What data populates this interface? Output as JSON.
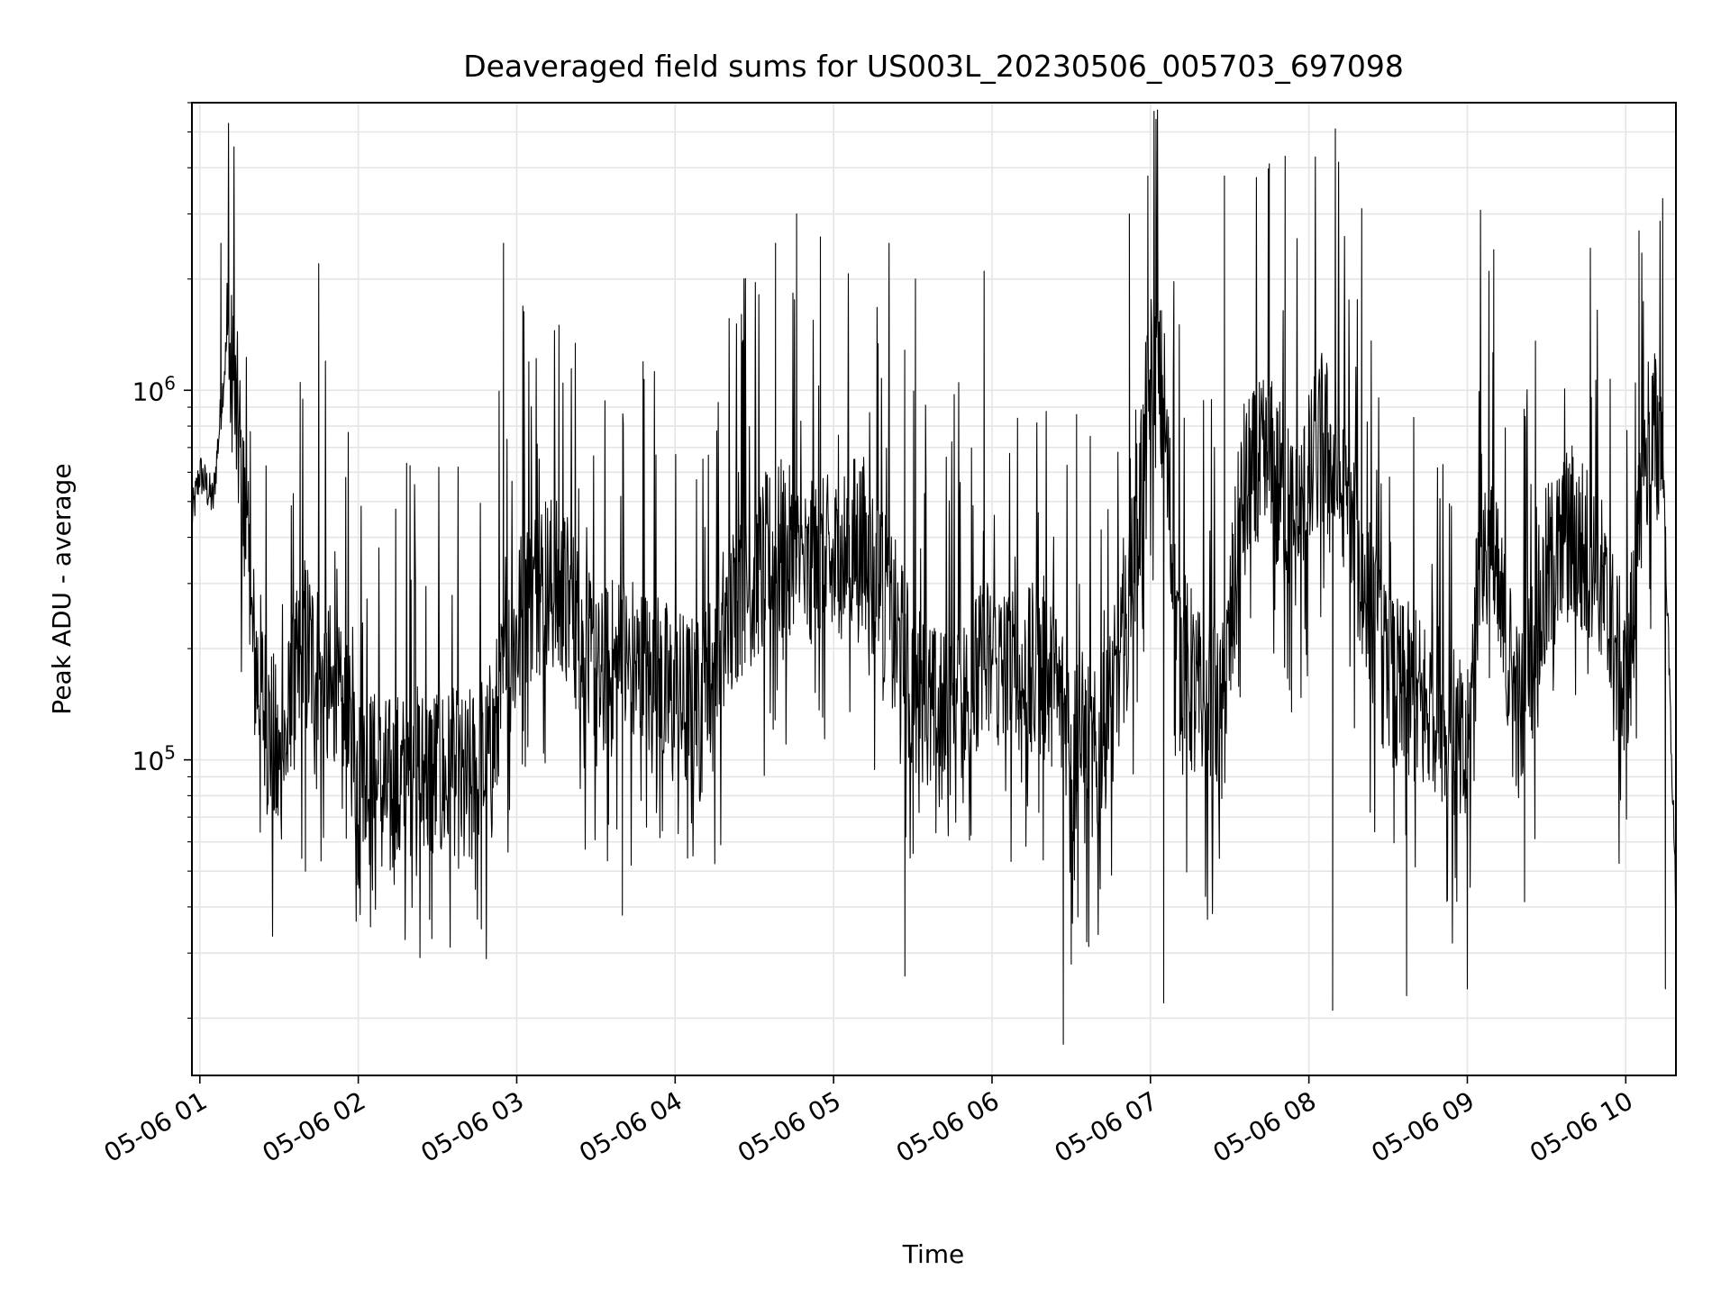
{
  "chart_data": {
    "type": "line",
    "title": "Deaveraged field sums for US003L_20230506_005703_697098",
    "xlabel": "Time",
    "ylabel": "Peak ADU - average",
    "x_scale": "time",
    "y_scale": "log",
    "xlim": [
      "05-06 00:57",
      "05-06 10:19"
    ],
    "ylim": [
      14000,
      6000000
    ],
    "grid": true,
    "x_ticks": [
      "05-06 01",
      "05-06 02",
      "05-06 03",
      "05-06 04",
      "05-06 05",
      "05-06 06",
      "05-06 07",
      "05-06 08",
      "05-06 09",
      "05-06 10"
    ],
    "y_ticks": [
      {
        "base": "10",
        "exp": "5",
        "value": 100000
      },
      {
        "base": "10",
        "exp": "6",
        "value": 1000000
      }
    ],
    "line_color": "#000000",
    "grid_color": "#e5e5e5",
    "series": [
      {
        "x": [
          "05-06 00:57",
          "05-06 01:00",
          "05-06 01:05",
          "05-06 01:10",
          "05-06 01:15",
          "05-06 01:20",
          "05-06 01:25",
          "05-06 01:30",
          "05-06 01:40",
          "05-06 01:50",
          "05-06 02:00",
          "05-06 02:10",
          "05-06 02:20",
          "05-06 02:30",
          "05-06 02:40",
          "05-06 02:50",
          "05-06 03:00",
          "05-06 03:10",
          "05-06 03:20",
          "05-06 03:30",
          "05-06 03:40",
          "05-06 03:50",
          "05-06 04:00",
          "05-06 04:10",
          "05-06 04:20",
          "05-06 04:30",
          "05-06 04:40",
          "05-06 04:50",
          "05-06 05:00",
          "05-06 05:10",
          "05-06 05:20",
          "05-06 05:30",
          "05-06 05:40",
          "05-06 05:50",
          "05-06 06:00",
          "05-06 06:10",
          "05-06 06:20",
          "05-06 06:30",
          "05-06 06:40",
          "05-06 06:50",
          "05-06 06:55",
          "05-06 07:00",
          "05-06 07:05",
          "05-06 07:10",
          "05-06 07:20",
          "05-06 07:27",
          "05-06 07:35",
          "05-06 07:45",
          "05-06 07:55",
          "05-06 08:05",
          "05-06 08:10",
          "05-06 08:20",
          "05-06 08:30",
          "05-06 08:40",
          "05-06 08:50",
          "05-06 09:00",
          "05-06 09:05",
          "05-06 09:10",
          "05-06 09:20",
          "05-06 09:30",
          "05-06 09:40",
          "05-06 09:50",
          "05-06 10:00",
          "05-06 10:05",
          "05-06 10:08",
          "05-06 10:14",
          "05-06 10:19"
        ],
        "y": [
          450000,
          600000,
          500000,
          1300000,
          700000,
          200000,
          130000,
          90000,
          200000,
          140000,
          90000,
          80000,
          85000,
          90000,
          80000,
          100000,
          220000,
          300000,
          250000,
          150000,
          180000,
          160000,
          140000,
          130000,
          230000,
          300000,
          350000,
          300000,
          320000,
          380000,
          250000,
          150000,
          120000,
          140000,
          180000,
          150000,
          170000,
          120000,
          90000,
          180000,
          400000,
          1000000,
          900000,
          200000,
          130000,
          120000,
          500000,
          600000,
          400000,
          700000,
          600000,
          300000,
          150000,
          140000,
          130000,
          90000,
          400000,
          300000,
          120000,
          300000,
          400000,
          300000,
          140000,
          350000,
          700000,
          700000,
          40000
        ]
      }
    ],
    "spikes": {
      "x": [
        "05-06 01:08",
        "05-06 01:38",
        "05-06 01:45",
        "05-06 02:55",
        "05-06 03:16",
        "05-06 04:38",
        "05-06 04:46",
        "05-06 04:55",
        "05-06 05:21",
        "05-06 05:31",
        "05-06 05:57",
        "05-06 06:32",
        "05-06 06:52",
        "05-06 06:59",
        "05-06 07:28",
        "05-06 07:45",
        "05-06 07:51",
        "05-06 08:10",
        "05-06 08:20",
        "05-06 09:10",
        "05-06 10:05",
        "05-06 10:14"
      ],
      "y": [
        2500000,
        1050000,
        2200000,
        2500000,
        1500000,
        2500000,
        3000000,
        2600000,
        2500000,
        2000000,
        2100000,
        860000,
        3000000,
        3800000,
        3800000,
        4100000,
        4300000,
        5100000,
        3100000,
        2400000,
        2700000,
        3300000
      ]
    },
    "dips": {
      "x": [
        "05-06 01:40",
        "05-06 02:27",
        "05-06 03:40",
        "05-06 05:27",
        "05-06 06:27",
        "05-06 06:30",
        "05-06 07:05",
        "05-06 08:09",
        "05-06 08:37",
        "05-06 09:00",
        "05-06 10:15"
      ],
      "y": [
        50000,
        37000,
        38000,
        26000,
        17000,
        28000,
        22000,
        21000,
        23000,
        24000,
        24000
      ]
    }
  }
}
